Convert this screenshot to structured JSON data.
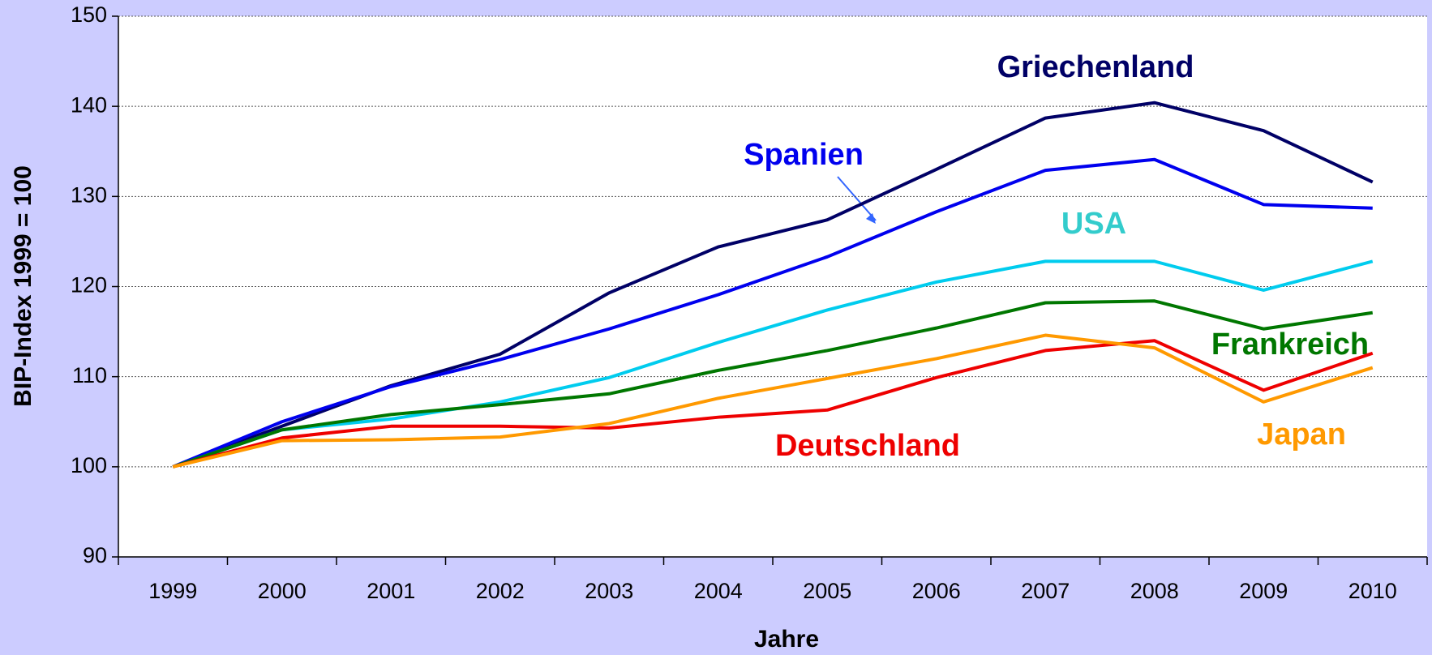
{
  "chart_data": {
    "type": "line",
    "x_label": "Jahre",
    "y_label": "BIP-Index 1999 = 100",
    "categories": [
      "1999",
      "2000",
      "2001",
      "2002",
      "2003",
      "2004",
      "2005",
      "2006",
      "2007",
      "2008",
      "2009",
      "2010"
    ],
    "ylim": [
      90,
      150
    ],
    "yticks": [
      90,
      100,
      110,
      120,
      130,
      140,
      150
    ],
    "grid": true,
    "series": [
      {
        "name": "Griechenland",
        "color": "#000066",
        "values": [
          100,
          104.5,
          109,
          112.5,
          119.3,
          124.4,
          127.4,
          133,
          138.7,
          140.4,
          137.3,
          131.6
        ]
      },
      {
        "name": "Spanien",
        "color": "#0000ee",
        "values": [
          100,
          105,
          108.9,
          111.9,
          115.3,
          119.1,
          123.3,
          128.3,
          132.9,
          134.1,
          129.1,
          128.7
        ]
      },
      {
        "name": "USA",
        "color": "#00ccee",
        "values": [
          100,
          104.1,
          105.3,
          107.2,
          109.9,
          113.8,
          117.4,
          120.5,
          122.8,
          122.8,
          119.6,
          122.8
        ]
      },
      {
        "name": "Frankreich",
        "color": "#007700",
        "values": [
          100,
          104.1,
          105.8,
          106.9,
          108.1,
          110.7,
          112.9,
          115.4,
          118.2,
          118.4,
          115.3,
          117.1
        ]
      },
      {
        "name": "Deutschland",
        "color": "#ee0000",
        "values": [
          100,
          103.2,
          104.5,
          104.5,
          104.3,
          105.5,
          106.3,
          109.9,
          112.9,
          114.0,
          108.5,
          112.6
        ]
      },
      {
        "name": "Japan",
        "color": "#ff9900",
        "values": [
          100,
          102.9,
          103.0,
          103.3,
          104.8,
          107.6,
          109.8,
          112.0,
          114.6,
          113.2,
          107.2,
          111.0
        ]
      }
    ]
  }
}
